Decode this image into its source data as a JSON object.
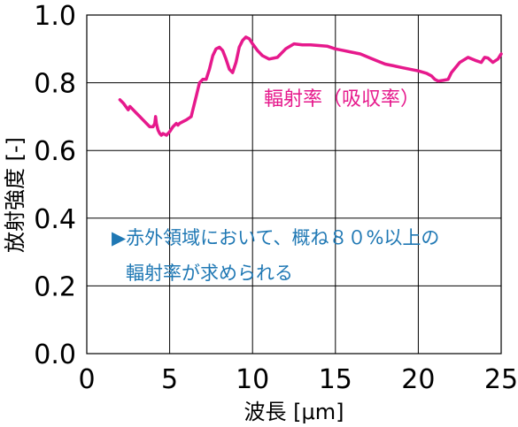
{
  "chart_data": {
    "type": "line",
    "xlabel": "波長 [μm]",
    "ylabel": "放射強度 [-]",
    "xlim": [
      0,
      25
    ],
    "ylim": [
      0,
      1.0
    ],
    "xticks": [
      "0",
      "5",
      "10",
      "15",
      "20",
      "25"
    ],
    "yticks": [
      "0.0",
      "0.2",
      "0.4",
      "0.6",
      "0.8",
      "1.0"
    ],
    "grid": true,
    "series": [
      {
        "name": "輻射率（吸収率）",
        "color": "#e6198c",
        "x": [
          2.0,
          2.2,
          2.5,
          2.6,
          2.8,
          3.0,
          3.2,
          3.4,
          3.6,
          3.8,
          4.0,
          4.1,
          4.15,
          4.2,
          4.3,
          4.4,
          4.5,
          4.6,
          4.8,
          5.0,
          5.2,
          5.4,
          5.5,
          5.6,
          5.8,
          6.0,
          6.3,
          6.5,
          6.6,
          6.8,
          7.0,
          7.2,
          7.4,
          7.6,
          7.8,
          8.0,
          8.2,
          8.4,
          8.6,
          8.8,
          9.0,
          9.2,
          9.4,
          9.6,
          9.8,
          10.0,
          10.3,
          10.6,
          11.0,
          11.5,
          12.0,
          12.5,
          13.0,
          13.5,
          14.0,
          14.5,
          15.0,
          15.5,
          16.0,
          16.5,
          17.0,
          17.5,
          18.0,
          18.5,
          19.0,
          19.5,
          20.0,
          20.5,
          20.8,
          21.0,
          21.2,
          21.5,
          21.8,
          22.0,
          22.5,
          23.0,
          23.5,
          23.8,
          24.0,
          24.2,
          24.5,
          24.8,
          25.0
        ],
        "y": [
          0.75,
          0.74,
          0.72,
          0.73,
          0.72,
          0.71,
          0.7,
          0.69,
          0.68,
          0.67,
          0.67,
          0.68,
          0.7,
          0.68,
          0.66,
          0.65,
          0.645,
          0.65,
          0.645,
          0.655,
          0.67,
          0.68,
          0.675,
          0.68,
          0.685,
          0.69,
          0.7,
          0.74,
          0.76,
          0.8,
          0.81,
          0.81,
          0.84,
          0.88,
          0.9,
          0.905,
          0.895,
          0.87,
          0.84,
          0.83,
          0.86,
          0.905,
          0.925,
          0.935,
          0.93,
          0.915,
          0.895,
          0.88,
          0.87,
          0.875,
          0.9,
          0.915,
          0.912,
          0.912,
          0.91,
          0.908,
          0.9,
          0.895,
          0.89,
          0.885,
          0.875,
          0.865,
          0.855,
          0.85,
          0.845,
          0.84,
          0.835,
          0.828,
          0.82,
          0.81,
          0.805,
          0.807,
          0.81,
          0.83,
          0.86,
          0.875,
          0.865,
          0.86,
          0.875,
          0.873,
          0.86,
          0.87,
          0.885
        ]
      }
    ],
    "annotations": [
      {
        "text": "輻射率（吸収率）",
        "color": "#e6198c"
      },
      {
        "text": "▶赤外領域において、概ね８０%以上の",
        "color": "#1f78b4"
      },
      {
        "text": "輻射率が求められる",
        "color": "#1f78b4"
      }
    ]
  }
}
